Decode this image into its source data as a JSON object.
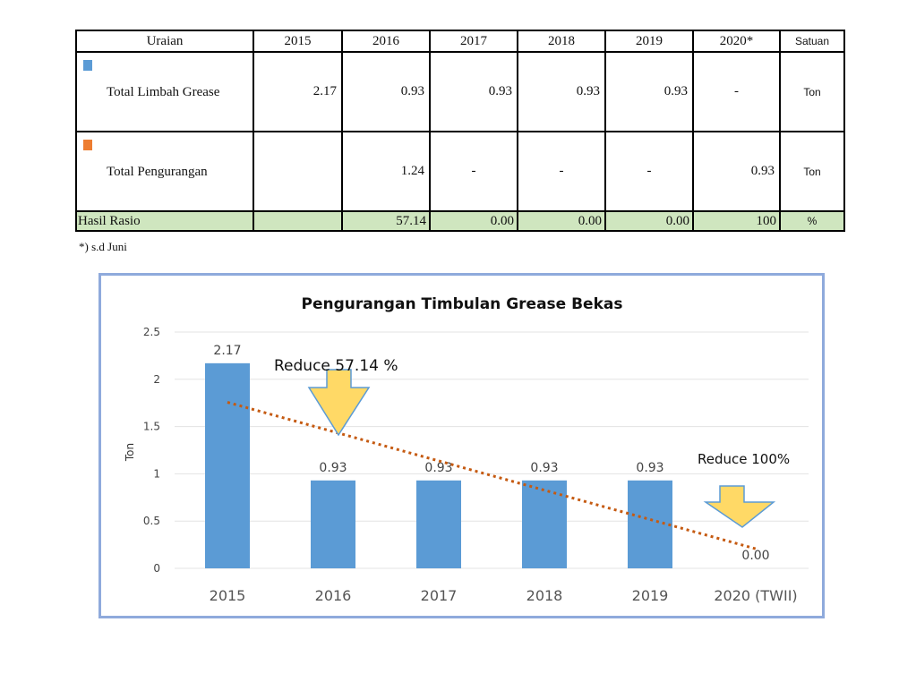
{
  "table": {
    "headers": [
      "Uraian",
      "2015",
      "2016",
      "2017",
      "2018",
      "2019",
      "2020*",
      "Satuan"
    ],
    "rows": [
      {
        "label": "Total Limbah Grease",
        "swatch_color": "#5b9bd5",
        "cells": [
          "2.17",
          "0.93",
          "0.93",
          "0.93",
          "0.93",
          "-"
        ],
        "unit": "Ton"
      },
      {
        "label": "Total Pengurangan",
        "swatch_color": "#ed7d31",
        "cells": [
          "",
          "1.24",
          "-",
          "-",
          "-",
          "0.93"
        ],
        "unit": "Ton"
      }
    ],
    "ratio_row": {
      "label": "Hasil Rasio",
      "cells": [
        "",
        "57.14",
        "0.00",
        "0.00",
        "0.00",
        "100"
      ],
      "unit": "%"
    },
    "note": "*) s.d Juni"
  },
  "chart_data": {
    "type": "bar",
    "title": "Pengurangan Timbulan Grease Bekas",
    "ylabel": "Ton",
    "xlabel": "",
    "ylim": [
      0,
      2.5
    ],
    "yticks": [
      "0",
      "0.5",
      "1",
      "1.5",
      "2",
      "2.5"
    ],
    "categories": [
      "2015",
      "2016",
      "2017",
      "2018",
      "2019",
      "2020 (TWII)"
    ],
    "values": [
      2.17,
      0.93,
      0.93,
      0.93,
      0.93,
      0
    ],
    "data_labels": [
      "2.17",
      "0.93",
      "0.93",
      "0.93",
      "0.93",
      "0.00"
    ],
    "grid": true,
    "bar_color": "#5b9bd5",
    "trendline": {
      "style": "dotted",
      "color": "#c55a11"
    },
    "annotations": [
      "Reduce 57.14 %",
      "Reduce 100%"
    ],
    "arrow_color": "#ffd966"
  }
}
